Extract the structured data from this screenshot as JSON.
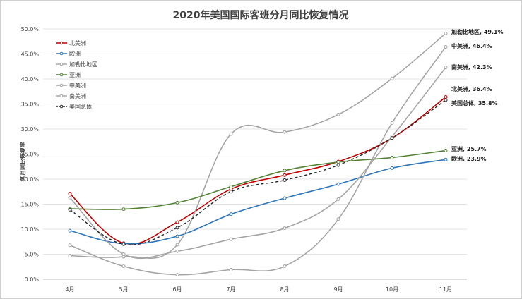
{
  "chart_data": {
    "type": "line",
    "title": "2020年美国国际客班分月同比恢复情况",
    "ylabel": "各月同比恢复率",
    "xlabel": "",
    "categories": [
      "4月",
      "5月",
      "6月",
      "7月",
      "8月",
      "9月",
      "10月",
      "11月"
    ],
    "y_ticks": [
      "0.0%",
      "5.0%",
      "10.0%",
      "15.0%",
      "20.0%",
      "25.0%",
      "30.0%",
      "35.0%",
      "40.0%",
      "45.0%",
      "50.0%"
    ],
    "ylim": [
      0,
      50
    ],
    "grid": true,
    "legend_position": "top-left",
    "series": [
      {
        "name": "北美洲",
        "color": "#c00000",
        "dash": false,
        "values": [
          17.1,
          7.2,
          11.4,
          18.0,
          20.8,
          23.5,
          28.2,
          36.4
        ],
        "end_label": "北美洲, 36.4%"
      },
      {
        "name": "欧洲",
        "color": "#2e75b6",
        "dash": false,
        "values": [
          9.7,
          7.1,
          8.6,
          13.0,
          16.2,
          19.0,
          22.2,
          23.9
        ],
        "end_label": "欧洲, 23.9%"
      },
      {
        "name": "加勒比地区",
        "color": "#a5a5a5",
        "dash": false,
        "values": [
          4.7,
          4.5,
          6.9,
          29.0,
          29.4,
          32.9,
          40.1,
          49.1
        ],
        "end_label": "加勒比地区, 49.1%"
      },
      {
        "name": "亚洲",
        "color": "#548235",
        "dash": false,
        "values": [
          14.1,
          14.0,
          15.3,
          18.5,
          21.7,
          23.4,
          24.3,
          25.7
        ],
        "end_label": "亚洲, 25.7%"
      },
      {
        "name": "中美洲",
        "color": "#a5a5a5",
        "dash": false,
        "values": [
          6.8,
          2.6,
          0.9,
          1.9,
          2.6,
          12.0,
          31.2,
          46.4
        ],
        "end_label": "中美洲, 46.4%"
      },
      {
        "name": "南美洲",
        "color": "#a5a5a5",
        "dash": false,
        "values": [
          16.3,
          5.0,
          5.6,
          8.0,
          10.2,
          16.0,
          28.5,
          42.3
        ],
        "end_label": "南美洲, 42.3%"
      },
      {
        "name": "美国总体",
        "color": "#262626",
        "dash": true,
        "values": [
          13.9,
          7.0,
          10.3,
          17.5,
          19.8,
          22.8,
          28.2,
          35.8
        ],
        "end_label": "美国总体, 35.8%"
      }
    ]
  }
}
